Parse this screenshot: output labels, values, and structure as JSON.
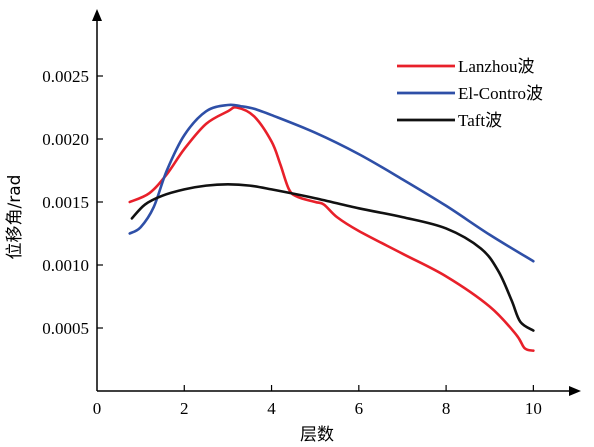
{
  "chart_data": {
    "type": "line",
    "xlabel": "层数",
    "ylabel": "位移角/rad",
    "xlim": [
      0,
      11
    ],
    "ylim": [
      0,
      0.003
    ],
    "x_ticks": [
      0,
      2,
      4,
      6,
      8,
      10
    ],
    "x_tick_labels": [
      "0",
      "2",
      "4",
      "6",
      "8",
      "10"
    ],
    "y_ticks": [
      0.0005,
      0.001,
      0.0015,
      0.002,
      0.0025
    ],
    "y_tick_labels": [
      "0.0005",
      "0.0010",
      "0.0015",
      "0.0020",
      "0.0025"
    ],
    "grid": false,
    "legend_position": "top-right",
    "series": [
      {
        "name": "Lanzhou波",
        "color": "#e8202a",
        "x": [
          0.75,
          1.2,
          1.6,
          2.0,
          2.5,
          3.0,
          3.2,
          3.6,
          4.0,
          4.2,
          4.4,
          4.6,
          5.0,
          5.2,
          5.5,
          6.0,
          7.0,
          8.0,
          9.0,
          9.6,
          9.8,
          10.0
        ],
        "y": [
          0.0015,
          0.00157,
          0.00172,
          0.00192,
          0.00212,
          0.00222,
          0.00225,
          0.00218,
          0.00198,
          0.0018,
          0.0016,
          0.00154,
          0.0015,
          0.00148,
          0.00138,
          0.00127,
          0.00109,
          0.00091,
          0.00067,
          0.00045,
          0.00034,
          0.00032
        ]
      },
      {
        "name": "El-Contro波",
        "color": "#2e4fa7",
        "x": [
          0.75,
          1.0,
          1.3,
          1.6,
          2.0,
          2.5,
          3.0,
          3.3,
          3.6,
          4.0,
          5.0,
          6.0,
          7.0,
          8.0,
          9.0,
          10.0
        ],
        "y": [
          0.00125,
          0.0013,
          0.00146,
          0.00175,
          0.00203,
          0.00222,
          0.00227,
          0.00226,
          0.00224,
          0.00219,
          0.00205,
          0.00188,
          0.00168,
          0.00147,
          0.00124,
          0.00103
        ]
      },
      {
        "name": "Taft波",
        "color": "#111111",
        "x": [
          0.8,
          1.1,
          1.5,
          2.0,
          2.5,
          3.0,
          3.5,
          4.0,
          5.0,
          6.0,
          7.0,
          8.0,
          8.8,
          9.2,
          9.5,
          9.7,
          10.0
        ],
        "y": [
          0.00137,
          0.00148,
          0.00155,
          0.0016,
          0.00163,
          0.00164,
          0.00163,
          0.0016,
          0.00153,
          0.00145,
          0.00138,
          0.00129,
          0.00113,
          0.00095,
          0.00072,
          0.00055,
          0.00048
        ]
      }
    ]
  }
}
